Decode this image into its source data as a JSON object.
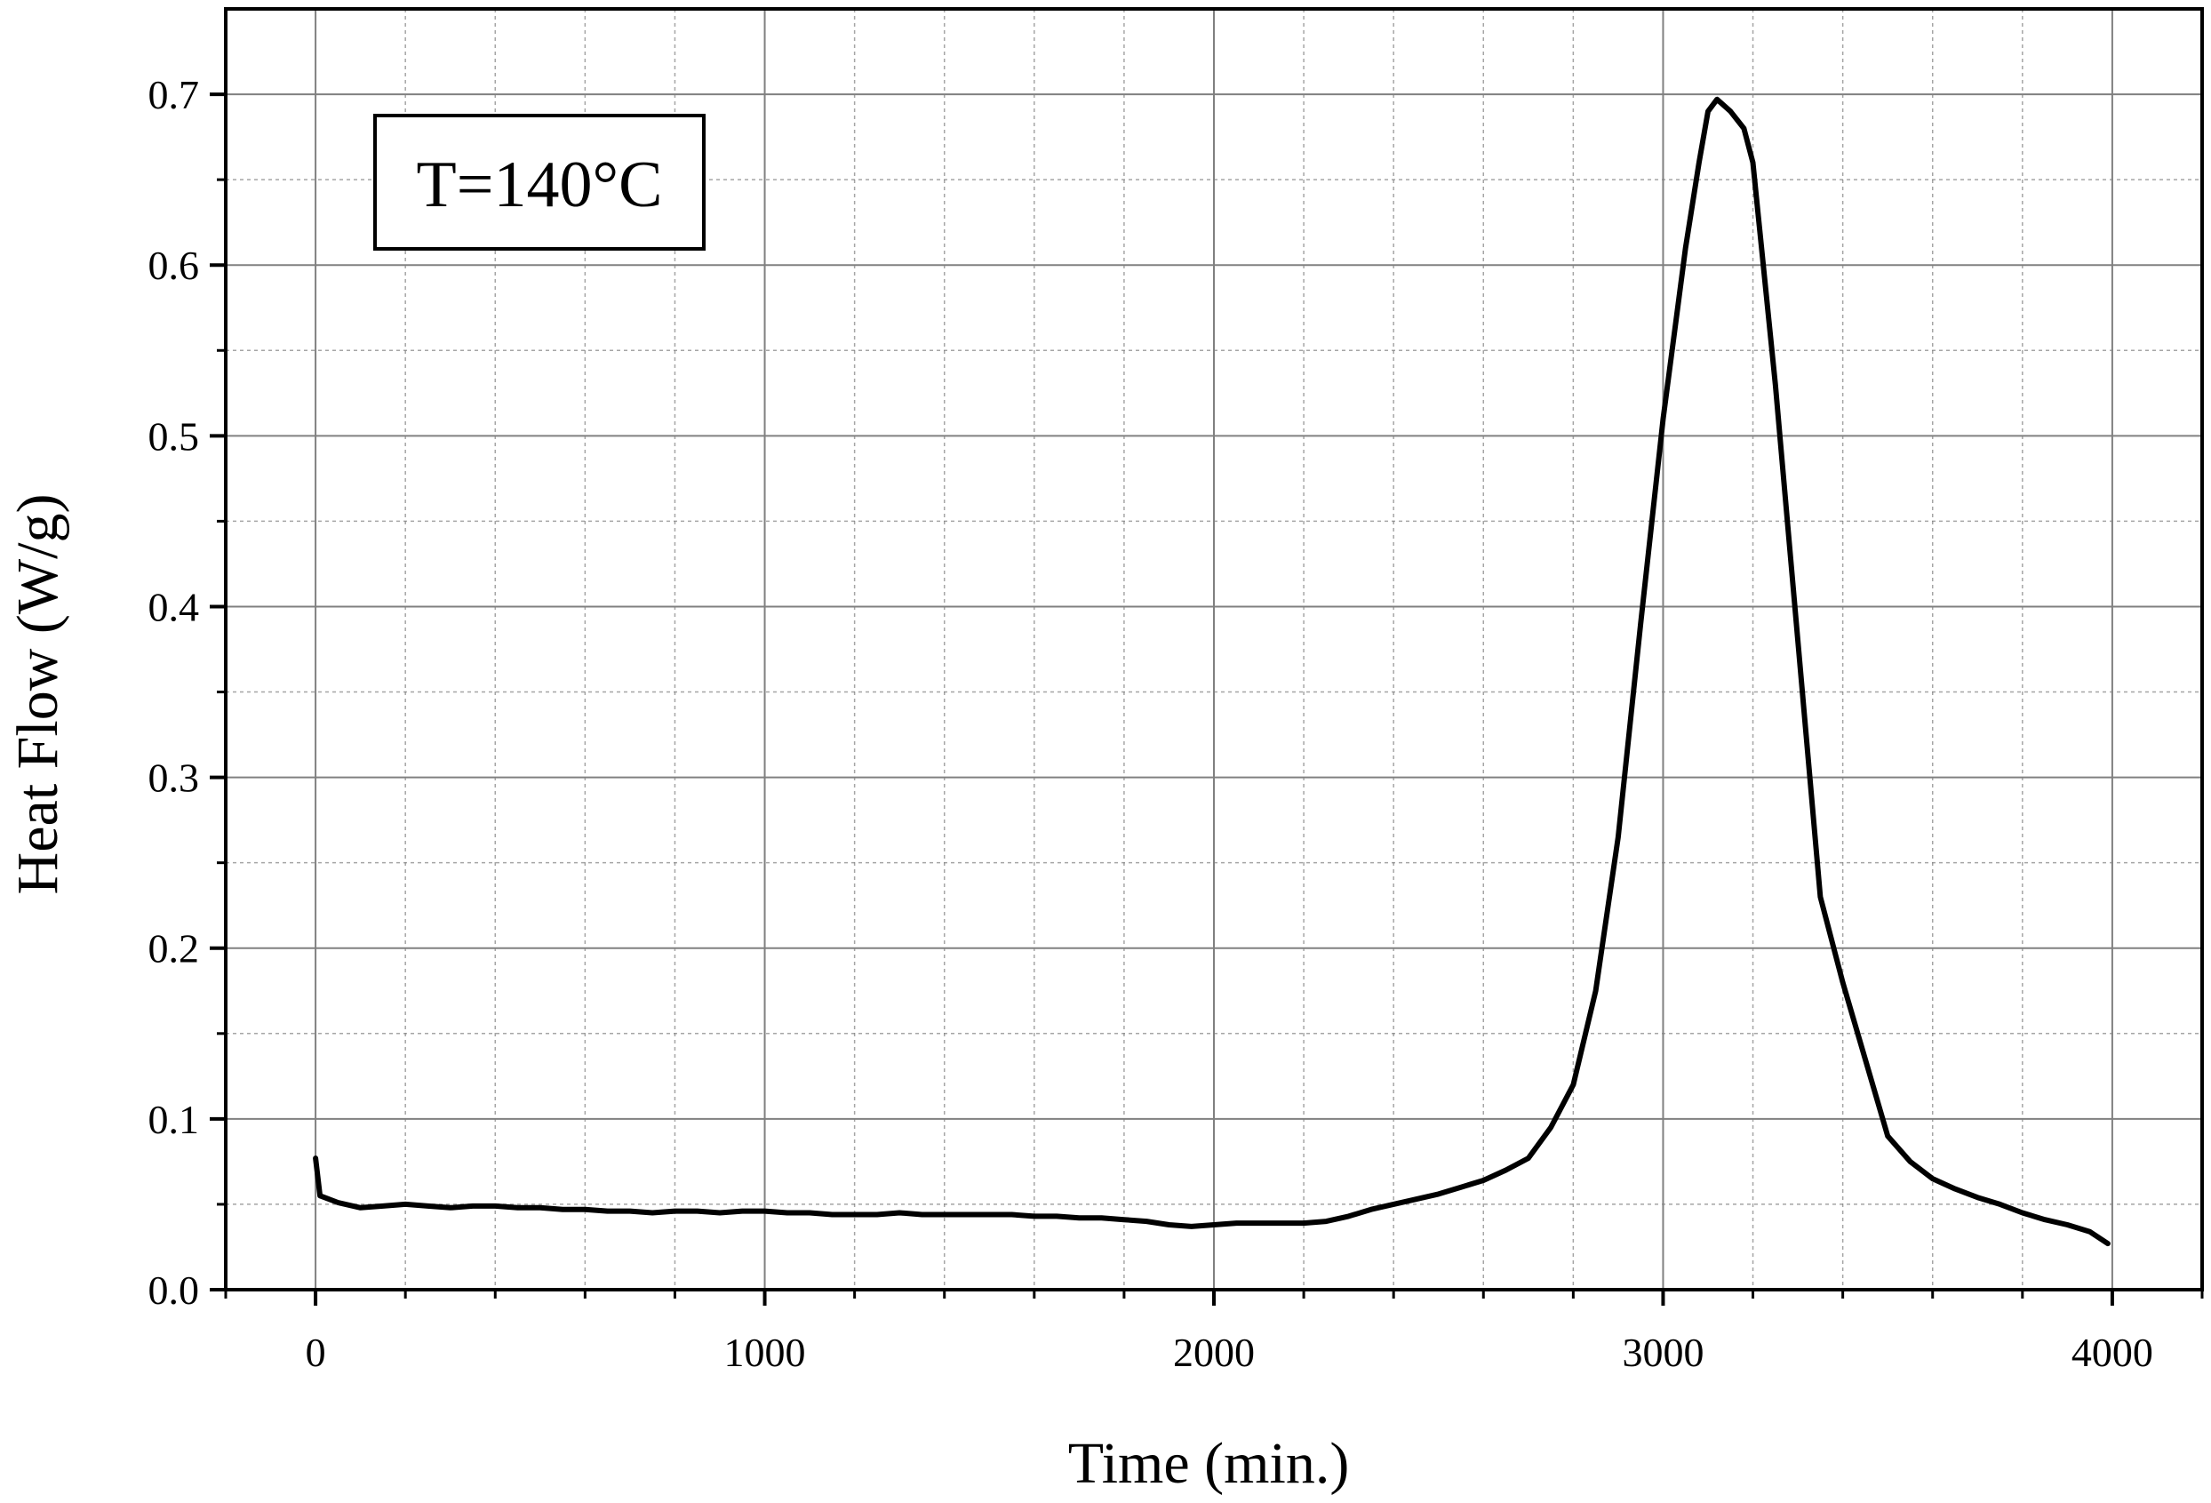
{
  "chart_data": {
    "type": "line",
    "title": "",
    "xlabel": "Time (min.)",
    "ylabel": "Heat Flow (W/g)",
    "xlim": [
      -200,
      4200
    ],
    "ylim": [
      0.0,
      0.75
    ],
    "xticks": [
      0,
      1000,
      2000,
      3000,
      4000
    ],
    "xtick_labels": [
      "0",
      "1000",
      "2000",
      "3000",
      "4000"
    ],
    "yticks": [
      0.0,
      0.1,
      0.2,
      0.3,
      0.4,
      0.5,
      0.6,
      0.7
    ],
    "ytick_labels": [
      "0.0",
      "0.1",
      "0.2",
      "0.3",
      "0.4",
      "0.5",
      "0.6",
      "0.7"
    ],
    "grid": true,
    "legend": "none",
    "annotation": "T=140°C",
    "line_color": "#000000",
    "grid_color": "#808080",
    "series": [
      {
        "x": [
          0,
          10,
          50,
          100,
          150,
          200,
          250,
          300,
          350,
          400,
          450,
          500,
          550,
          600,
          650,
          700,
          750,
          800,
          850,
          900,
          950,
          1000,
          1050,
          1100,
          1150,
          1200,
          1250,
          1300,
          1350,
          1400,
          1450,
          1500,
          1550,
          1600,
          1650,
          1700,
          1750,
          1800,
          1850,
          1900,
          1950,
          2000,
          2050,
          2100,
          2150,
          2200,
          2250,
          2300,
          2350,
          2400,
          2450,
          2500,
          2550,
          2600,
          2650,
          2700,
          2750,
          2800,
          2850,
          2900,
          2950,
          3000,
          3050,
          3080,
          3100,
          3120,
          3150,
          3180,
          3200,
          3250,
          3300,
          3350,
          3400,
          3450,
          3500,
          3550,
          3600,
          3650,
          3700,
          3750,
          3800,
          3850,
          3900,
          3950,
          3990
        ],
        "values": [
          0.077,
          0.055,
          0.051,
          0.048,
          0.049,
          0.05,
          0.049,
          0.048,
          0.049,
          0.049,
          0.048,
          0.048,
          0.047,
          0.047,
          0.046,
          0.046,
          0.045,
          0.046,
          0.046,
          0.045,
          0.046,
          0.046,
          0.045,
          0.045,
          0.044,
          0.044,
          0.044,
          0.045,
          0.044,
          0.044,
          0.044,
          0.044,
          0.044,
          0.043,
          0.043,
          0.042,
          0.042,
          0.041,
          0.04,
          0.038,
          0.037,
          0.038,
          0.039,
          0.039,
          0.039,
          0.039,
          0.04,
          0.043,
          0.047,
          0.05,
          0.053,
          0.056,
          0.06,
          0.064,
          0.07,
          0.077,
          0.095,
          0.12,
          0.175,
          0.265,
          0.39,
          0.51,
          0.61,
          0.66,
          0.69,
          0.697,
          0.69,
          0.68,
          0.66,
          0.53,
          0.38,
          0.23,
          0.18,
          0.135,
          0.09,
          0.075,
          0.065,
          0.059,
          0.054,
          0.05,
          0.045,
          0.041,
          0.038,
          0.034,
          0.027
        ]
      }
    ]
  }
}
